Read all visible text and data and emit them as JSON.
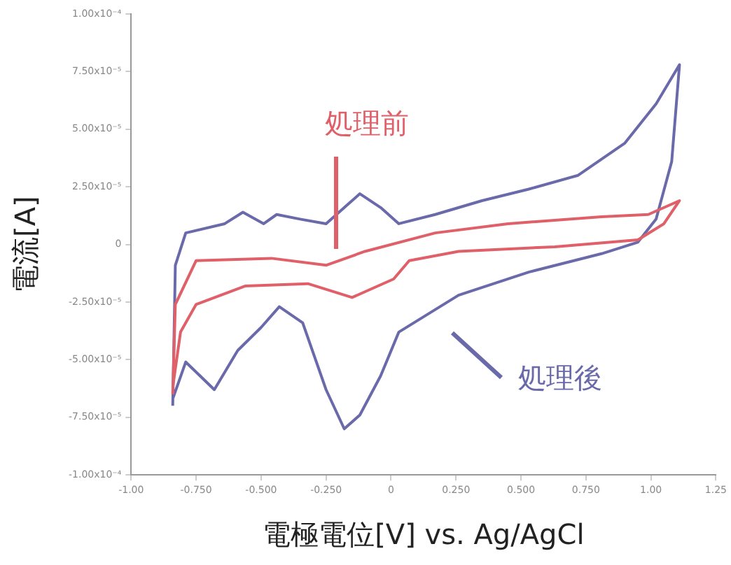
{
  "chart_data": {
    "type": "line",
    "xlabel": "電極電位[V] vs. Ag/AgCl",
    "ylabel": "電流[A]",
    "grid": false,
    "legend": false,
    "marker": "none",
    "line_style": "solid",
    "xlim": [
      -1.0,
      1.25
    ],
    "xticks": [
      {
        "value": -1.0,
        "label": "-1.00"
      },
      {
        "value": -0.75,
        "label": "-0.750"
      },
      {
        "value": -0.5,
        "label": "-0.500"
      },
      {
        "value": -0.25,
        "label": "-0.250"
      },
      0,
      {
        "value": 0.25,
        "label": "0.250"
      },
      {
        "value": 0.5,
        "label": "0.500"
      },
      {
        "value": 0.75,
        "label": "0.750"
      },
      {
        "value": 1.0,
        "label": "1.00"
      },
      {
        "value": 1.25,
        "label": "1.25"
      }
    ],
    "ylim": [
      -0.0001,
      0.0001
    ],
    "yticks": [
      {
        "value": -0.0001,
        "label": "-1.00x10⁻⁴"
      },
      {
        "value": -7.5e-05,
        "label": "-7.50x10⁻⁵"
      },
      {
        "value": -5e-05,
        "label": "-5.00x10⁻⁵"
      },
      {
        "value": -2.5e-05,
        "label": "-2.50x10⁻⁵"
      },
      0,
      {
        "value": 2.5e-05,
        "label": "2.50x10⁻⁵"
      },
      {
        "value": 5e-05,
        "label": "5.00x10⁻⁵"
      },
      {
        "value": 7.5e-05,
        "label": "7.50x10⁻⁵"
      },
      {
        "value": 0.0001,
        "label": "1.00x10⁻⁴"
      }
    ],
    "series": [
      {
        "name": "処理前",
        "type": "line",
        "color": "#e0606a",
        "x": [
          -0.84,
          -0.83,
          -0.75,
          -0.46,
          -0.25,
          -0.1,
          0.17,
          0.45,
          0.81,
          0.99,
          1.11,
          1.05,
          0.95,
          0.63,
          0.26,
          0.07,
          0.01,
          -0.15,
          -0.32,
          -0.56,
          -0.75,
          -0.81,
          -0.84
        ],
        "values": [
          -6.5e-05,
          -2.6e-05,
          -7e-06,
          -6e-06,
          -9e-06,
          -3e-06,
          5e-06,
          9e-06,
          1.2e-05,
          1.3e-05,
          1.9e-05,
          9e-06,
          2e-06,
          -1e-06,
          -3e-06,
          -7e-06,
          -1.5e-05,
          -2.3e-05,
          -1.7e-05,
          -1.8e-05,
          -2.6e-05,
          -3.8e-05,
          -6.2e-05
        ]
      },
      {
        "name": "処理後",
        "type": "line",
        "color": "#6a6aaa",
        "x": [
          -0.84,
          -0.83,
          -0.79,
          -0.64,
          -0.57,
          -0.49,
          -0.44,
          -0.35,
          -0.25,
          -0.17,
          -0.12,
          -0.04,
          0.03,
          0.17,
          0.35,
          0.53,
          0.72,
          0.9,
          1.02,
          1.11,
          1.08,
          1.02,
          0.95,
          0.81,
          0.53,
          0.26,
          0.03,
          -0.04,
          -0.12,
          -0.18,
          -0.25,
          -0.34,
          -0.43,
          -0.5,
          -0.59,
          -0.68,
          -0.79,
          -0.84
        ],
        "values": [
          -7e-05,
          -9e-06,
          5e-06,
          9e-06,
          1.4e-05,
          9e-06,
          1.3e-05,
          1.1e-05,
          9e-06,
          1.7e-05,
          2.2e-05,
          1.6e-05,
          9e-06,
          1.3e-05,
          1.9e-05,
          2.4e-05,
          3e-05,
          4.4e-05,
          6.1e-05,
          7.8e-05,
          3.6e-05,
          1.1e-05,
          1e-06,
          -4e-06,
          -1.2e-05,
          -2.2e-05,
          -3.8e-05,
          -5.7e-05,
          -7.4e-05,
          -8e-05,
          -6.3e-05,
          -3.4e-05,
          -2.7e-05,
          -3.6e-05,
          -4.6e-05,
          -6.3e-05,
          -5.1e-05,
          -6.7e-05
        ]
      }
    ]
  }
}
